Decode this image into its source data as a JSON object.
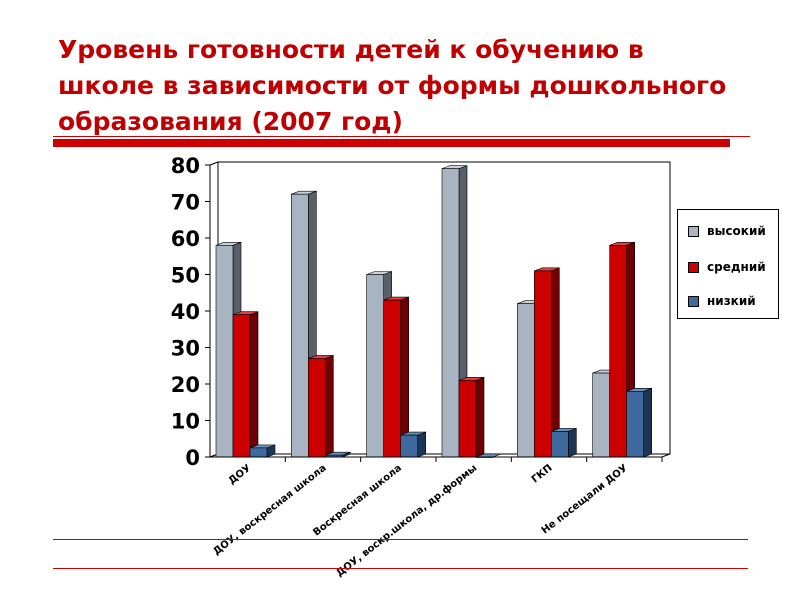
{
  "slide": {
    "title": "Уровень готовности детей к обучению в школе в зависимости от формы дошкольного образования (2007 год)"
  },
  "colors": {
    "accent": "#cc0000",
    "series_front": [
      "#a9b4c2",
      "#cc0000",
      "#3f6aa0"
    ],
    "series_side": [
      "#5a606a",
      "#6e0000",
      "#1e3656"
    ],
    "series_top": [
      "#c8d0da",
      "#e04040",
      "#6a8dbd"
    ]
  },
  "chart_data": {
    "type": "bar",
    "categories": [
      "ДОУ",
      "ДОУ, воскресная школа",
      "Воскресная школа",
      "ДОУ, воскр.школа, др.формы",
      "ГКП",
      "Не посещали ДОУ"
    ],
    "series": [
      {
        "name": "высокий",
        "values": [
          58,
          72,
          50,
          79,
          42,
          23
        ]
      },
      {
        "name": "средний",
        "values": [
          39,
          27,
          43,
          21,
          51,
          58
        ]
      },
      {
        "name": "низкий",
        "values": [
          2.5,
          0.5,
          6,
          0,
          7,
          18
        ]
      }
    ],
    "title": "",
    "xlabel": "",
    "ylabel": "",
    "ylim": [
      0,
      80
    ],
    "yticks": [
      "0",
      "10",
      "20",
      "30",
      "40",
      "50",
      "60",
      "70",
      "80"
    ],
    "grid": false,
    "legend": "right"
  }
}
